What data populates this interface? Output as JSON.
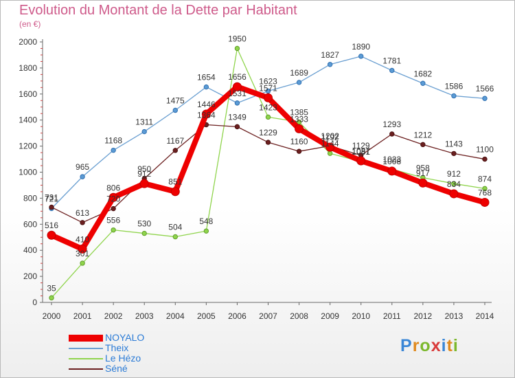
{
  "chart_data": {
    "type": "line",
    "title": "Evolution du Montant de la Dette par Habitant",
    "subtitle": "(en €)",
    "x": [
      "2000",
      "2001",
      "2002",
      "2003",
      "2004",
      "2005",
      "2006",
      "2007",
      "2008",
      "2009",
      "2010",
      "2011",
      "2012",
      "2013",
      "2014"
    ],
    "ylim": [
      0,
      2000
    ],
    "yticks": [
      0,
      200,
      400,
      600,
      800,
      1000,
      1200,
      1400,
      1600,
      1800,
      2000
    ],
    "grid": false,
    "legend_position": "bottom-left",
    "series": [
      {
        "name": "Theix",
        "color": "#6a9fd1",
        "values": [
          721,
          965,
          1168,
          1311,
          1475,
          1654,
          1531,
          1623,
          1689,
          1827,
          1890,
          1781,
          1682,
          1586,
          1566
        ]
      },
      {
        "name": "Le Hézo",
        "color": "#8fd44c",
        "values": [
          35,
          301,
          556,
          530,
          504,
          548,
          1950,
          1423,
          1385,
          1144,
          1081,
          1023,
          958,
          912,
          874
        ]
      },
      {
        "name": "Séné",
        "color": "#6b1f1f",
        "values": [
          731,
          613,
          720,
          950,
          1167,
          1364,
          1349,
          1229,
          1160,
          1202,
          1129,
          1293,
          1212,
          1143,
          1100
        ]
      },
      {
        "name": "NOYALO",
        "color": "#ee0000",
        "values": [
          516,
          410,
          806,
          912,
          851,
          1446,
          1656,
          1571,
          1333,
          1192,
          1087,
          1008,
          917,
          834,
          768
        ]
      }
    ],
    "legend": [
      "NOYALO",
      "Theix",
      "Le Hézo",
      "Séné"
    ]
  },
  "logo": {
    "text": "Proxiti",
    "colors": [
      "#3a86d6",
      "#e08a1e",
      "#7bb82c",
      "#d93a3a"
    ]
  }
}
